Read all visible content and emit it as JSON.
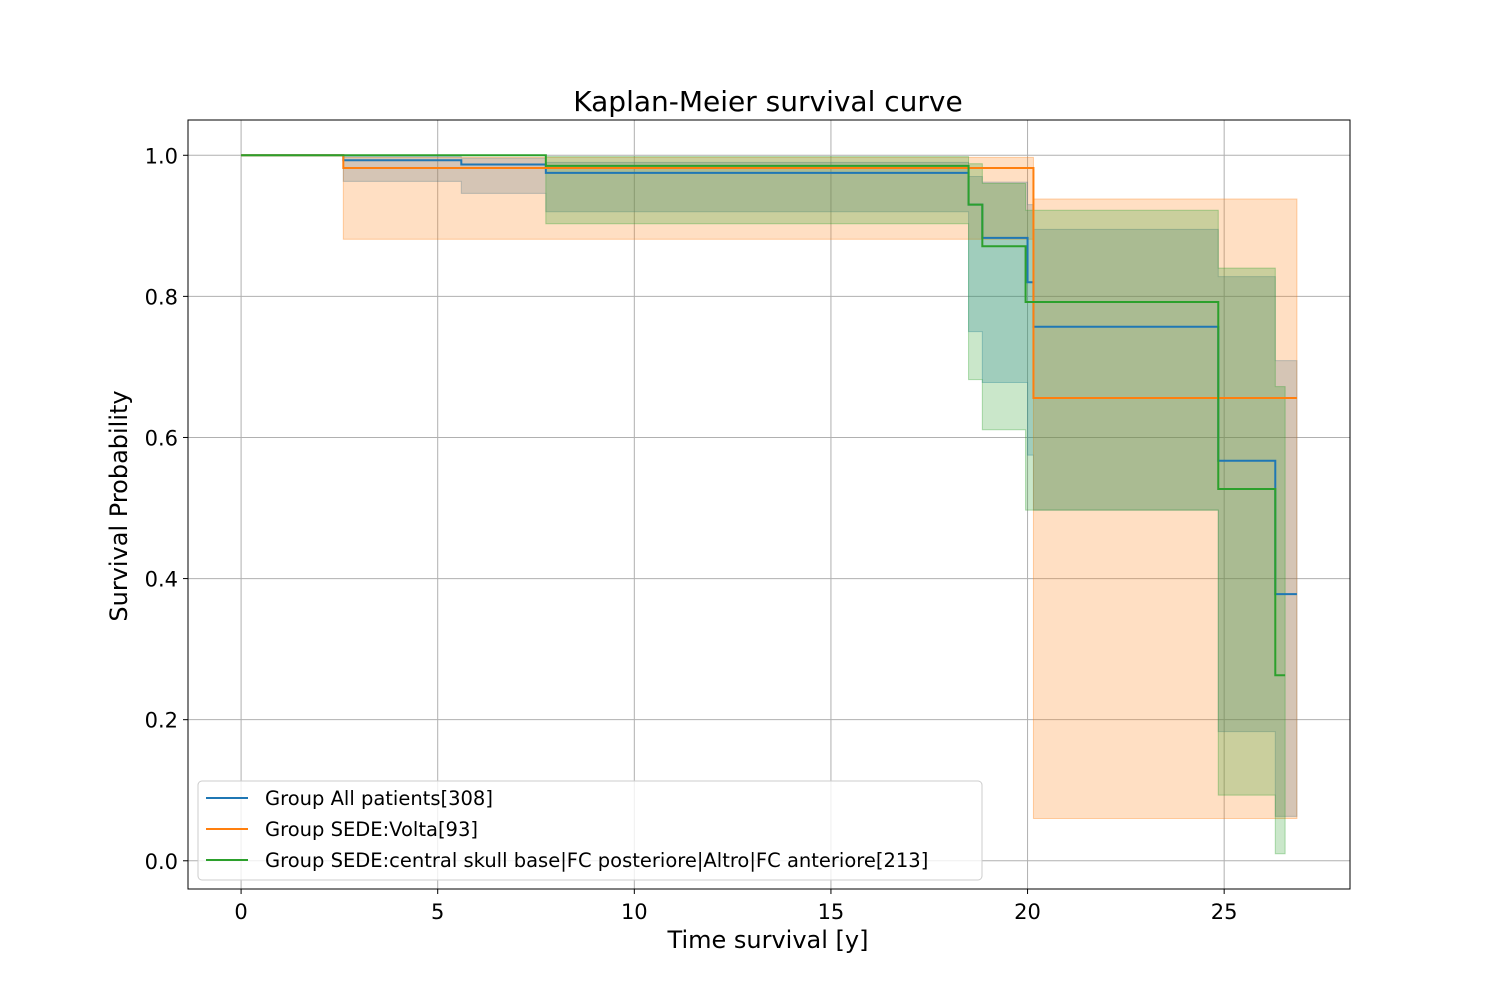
{
  "chart_data": {
    "type": "line",
    "title": "Kaplan-Meier survival curve",
    "xlabel": "Time survival [y]",
    "ylabel": "Survival Probability",
    "xlim": [
      -1.35,
      28.2
    ],
    "ylim": [
      -0.04,
      1.05
    ],
    "xticks": [
      0,
      5,
      10,
      15,
      20,
      25
    ],
    "yticks": [
      0.0,
      0.2,
      0.4,
      0.6,
      0.8,
      1.0
    ],
    "xtick_labels": [
      "0",
      "5",
      "10",
      "15",
      "20",
      "25"
    ],
    "ytick_labels": [
      "0.0",
      "0.2",
      "0.4",
      "0.6",
      "0.8",
      "1.0"
    ],
    "grid": true,
    "legend_position": "lower-left",
    "series": [
      {
        "name": "Group All patients[308]",
        "color": "#1f77b4",
        "x": [
          0,
          2.6,
          5.6,
          7.75,
          18.5,
          18.85,
          20.0,
          20.15,
          24.85,
          26.3,
          26.85
        ],
        "y": [
          1.0,
          0.993,
          0.987,
          0.975,
          0.93,
          0.883,
          0.82,
          0.757,
          0.567,
          0.378,
          0.378
        ],
        "ci_lower": [
          1.0,
          0.963,
          0.946,
          0.92,
          0.75,
          0.678,
          0.575,
          0.497,
          0.183,
          0.063,
          0.063
        ],
        "ci_upper": [
          1.0,
          0.998,
          0.996,
          0.99,
          0.97,
          0.962,
          0.93,
          0.895,
          0.828,
          0.709,
          0.709
        ]
      },
      {
        "name": "Group SEDE:Volta[93]",
        "color": "#ff7f0e",
        "x": [
          0,
          2.6,
          20.15,
          26.85
        ],
        "y": [
          1.0,
          0.982,
          0.656,
          0.656
        ],
        "ci_lower": [
          1.0,
          0.881,
          0.06,
          0.06
        ],
        "ci_upper": [
          1.0,
          0.997,
          0.938,
          0.938
        ]
      },
      {
        "name": "Group SEDE:central skull base|FC posteriore|Altro|FC anteriore[213]",
        "color": "#2ca02c",
        "x": [
          0,
          7.75,
          18.5,
          18.85,
          19.95,
          24.85,
          26.3,
          26.55
        ],
        "y": [
          1.0,
          0.985,
          0.93,
          0.871,
          0.792,
          0.527,
          0.263,
          0.263
        ],
        "ci_lower": [
          1.0,
          0.903,
          0.682,
          0.611,
          0.497,
          0.093,
          0.01,
          0.01
        ],
        "ci_upper": [
          1.0,
          0.998,
          0.988,
          0.96,
          0.922,
          0.84,
          0.672,
          0.672
        ]
      }
    ]
  }
}
